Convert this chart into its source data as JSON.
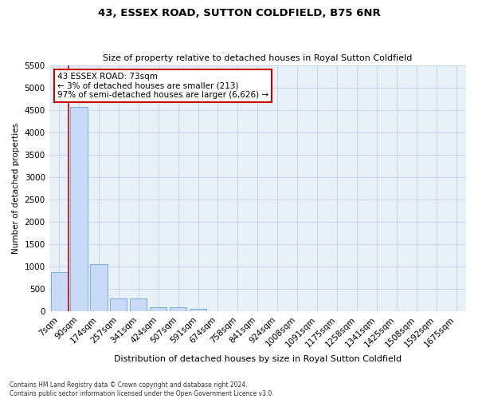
{
  "title1": "43, ESSEX ROAD, SUTTON COLDFIELD, B75 6NR",
  "title2": "Size of property relative to detached houses in Royal Sutton Coldfield",
  "xlabel": "Distribution of detached houses by size in Royal Sutton Coldfield",
  "ylabel": "Number of detached properties",
  "footnote1": "Contains HM Land Registry data © Crown copyright and database right 2024.",
  "footnote2": "Contains public sector information licensed under the Open Government Licence v3.0.",
  "bar_labels": [
    "7sqm",
    "90sqm",
    "174sqm",
    "257sqm",
    "341sqm",
    "424sqm",
    "507sqm",
    "591sqm",
    "674sqm",
    "758sqm",
    "841sqm",
    "924sqm",
    "1008sqm",
    "1091sqm",
    "1175sqm",
    "1258sqm",
    "1341sqm",
    "1425sqm",
    "1508sqm",
    "1592sqm",
    "1675sqm"
  ],
  "bar_values": [
    880,
    4570,
    1055,
    290,
    290,
    90,
    90,
    55,
    0,
    0,
    0,
    0,
    0,
    0,
    0,
    0,
    0,
    0,
    0,
    0,
    0
  ],
  "bar_color": "#c9daf8",
  "bar_edge_color": "#7bafd4",
  "grid_color": "#c8d8e8",
  "background_color": "#e8f0f8",
  "annotation_text": "43 ESSEX ROAD: 73sqm\n← 3% of detached houses are smaller (213)\n97% of semi-detached houses are larger (6,626) →",
  "annotation_box_color": "#ffffff",
  "annotation_box_edge": "#cc0000",
  "subject_line_color": "#cc0000",
  "ylim": [
    0,
    5500
  ],
  "yticks": [
    0,
    500,
    1000,
    1500,
    2000,
    2500,
    3000,
    3500,
    4000,
    4500,
    5000,
    5500
  ]
}
